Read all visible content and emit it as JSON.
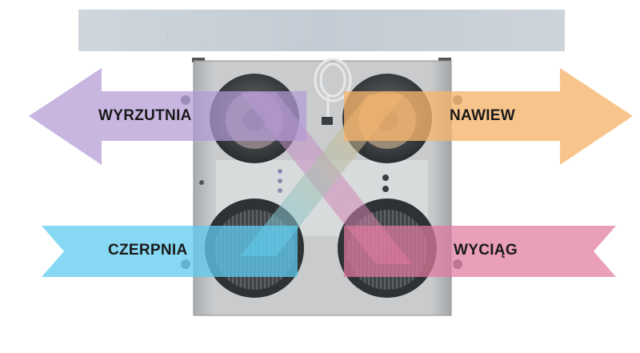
{
  "labels": {
    "exhaust_out": "WYRZUTNIA",
    "supply": "NAWIEW",
    "intake": "CZERPNIA",
    "extract": "WYCIĄG"
  },
  "colors": {
    "exhaust_out": "#b39ad6",
    "supply": "#f5b36b",
    "intake": "#5fcbef",
    "extract": "#e07aa0",
    "unit_body": "#bfc2c5",
    "ceiling": "#c7d0d8"
  },
  "icons": {
    "ceiling": "concrete-ceiling-slab",
    "unit": "heat-recovery-unit",
    "fans": "duct-connection-icon",
    "cable": "power-cable-icon"
  }
}
